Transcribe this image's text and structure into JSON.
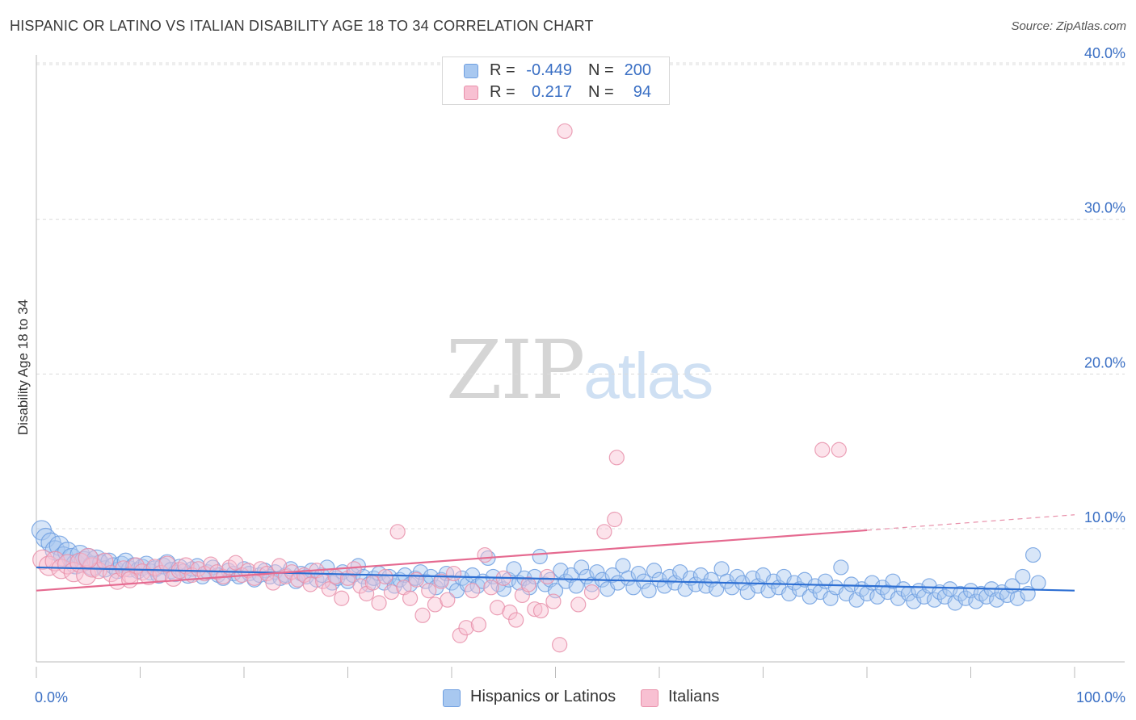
{
  "title": "HISPANIC OR LATINO VS ITALIAN DISABILITY AGE 18 TO 34 CORRELATION CHART",
  "source": "Source: ZipAtlas.com",
  "watermark": {
    "zip": "ZIP",
    "atlas": "atlas"
  },
  "legend": {
    "rows": [
      {
        "r_label": "R =",
        "r_value": "-0.449",
        "n_label": "N =",
        "n_value": "200",
        "color": "#a8c8f0",
        "border": "#6f9fe0"
      },
      {
        "r_label": "R =",
        "r_value": "0.217",
        "n_label": "N =",
        "n_value": "94",
        "color": "#f8c0d2",
        "border": "#e890aa"
      }
    ]
  },
  "bottom_legend": [
    {
      "label": "Hispanics or Latinos",
      "color": "#a8c8f0",
      "border": "#6f9fe0"
    },
    {
      "label": "Italians",
      "color": "#f8c0d2",
      "border": "#e890aa"
    }
  ],
  "chart_data": {
    "type": "scatter",
    "title": "HISPANIC OR LATINO VS ITALIAN DISABILITY AGE 18 TO 34 CORRELATION CHART",
    "xlabel": "",
    "ylabel": "Disability Age 18 to 34",
    "xlim": [
      0,
      100
    ],
    "ylim": [
      0,
      41
    ],
    "x_tick_labels": [
      "0.0%",
      "100.0%"
    ],
    "y_ticks": [
      10,
      20,
      30,
      40
    ],
    "y_tick_labels": [
      "10.0%",
      "20.0%",
      "30.0%",
      "40.0%"
    ],
    "grid": "horizontal dashed",
    "series": [
      {
        "name": "Hispanics or Latinos",
        "color": "#6f9fe0",
        "fill": "#a8c8f0",
        "trend": {
          "x": [
            0,
            100
          ],
          "y": [
            7.5,
            6.0
          ]
        },
        "points": [
          [
            0.5,
            9.9
          ],
          [
            0.9,
            9.4
          ],
          [
            1.4,
            9.1
          ],
          [
            1.8,
            8.6
          ],
          [
            2.2,
            8.9
          ],
          [
            2.6,
            8.2
          ],
          [
            3.0,
            8.5
          ],
          [
            3.4,
            8.1
          ],
          [
            3.8,
            7.7
          ],
          [
            4.2,
            8.3
          ],
          [
            4.6,
            7.9
          ],
          [
            5.0,
            8.1
          ],
          [
            5.4,
            7.6
          ],
          [
            5.8,
            8.0
          ],
          [
            6.2,
            7.8
          ],
          [
            6.6,
            7.4
          ],
          [
            7.0,
            7.9
          ],
          [
            7.4,
            7.6
          ],
          [
            7.8,
            7.3
          ],
          [
            8.2,
            7.7
          ],
          [
            8.6,
            7.9
          ],
          [
            9.0,
            7.4
          ],
          [
            9.4,
            7.6
          ],
          [
            9.8,
            7.3
          ],
          [
            10.2,
            7.5
          ],
          [
            10.6,
            7.7
          ],
          [
            11.0,
            7.2
          ],
          [
            11.4,
            7.4
          ],
          [
            11.8,
            7.0
          ],
          [
            12.2,
            7.6
          ],
          [
            12.6,
            7.8
          ],
          [
            13.0,
            7.3
          ],
          [
            13.4,
            7.1
          ],
          [
            13.8,
            7.5
          ],
          [
            14.2,
            7.2
          ],
          [
            14.6,
            7.0
          ],
          [
            15.0,
            7.4
          ],
          [
            15.5,
            7.6
          ],
          [
            16.0,
            6.9
          ],
          [
            16.5,
            7.2
          ],
          [
            17.0,
            7.5
          ],
          [
            17.5,
            7.0
          ],
          [
            18.0,
            6.8
          ],
          [
            18.5,
            7.3
          ],
          [
            19.0,
            7.1
          ],
          [
            19.5,
            6.9
          ],
          [
            20.0,
            7.4
          ],
          [
            20.5,
            7.1
          ],
          [
            21.0,
            6.7
          ],
          [
            21.5,
            7.0
          ],
          [
            22.0,
            7.3
          ],
          [
            22.5,
            6.9
          ],
          [
            23.0,
            7.2
          ],
          [
            23.5,
            6.8
          ],
          [
            24.0,
            7.0
          ],
          [
            24.5,
            7.4
          ],
          [
            25.0,
            6.6
          ],
          [
            25.5,
            7.1
          ],
          [
            26.0,
            6.9
          ],
          [
            26.5,
            7.3
          ],
          [
            27.0,
            6.7
          ],
          [
            27.5,
            7.0
          ],
          [
            28.0,
            7.5
          ],
          [
            28.5,
            6.5
          ],
          [
            29.0,
            6.8
          ],
          [
            29.5,
            7.2
          ],
          [
            30.0,
            6.6
          ],
          [
            30.5,
            7.0
          ],
          [
            31.0,
            7.6
          ],
          [
            31.5,
            6.9
          ],
          [
            32.0,
            6.4
          ],
          [
            32.5,
            6.8
          ],
          [
            33.0,
            7.1
          ],
          [
            33.5,
            6.5
          ],
          [
            34.0,
            6.9
          ],
          [
            34.5,
            6.3
          ],
          [
            35.0,
            6.7
          ],
          [
            35.5,
            7.0
          ],
          [
            36.0,
            6.4
          ],
          [
            36.5,
            6.8
          ],
          [
            37.0,
            7.2
          ],
          [
            37.5,
            6.6
          ],
          [
            38.0,
            6.9
          ],
          [
            38.5,
            6.2
          ],
          [
            39.0,
            6.7
          ],
          [
            39.5,
            7.1
          ],
          [
            40.0,
            6.5
          ],
          [
            40.5,
            6.0
          ],
          [
            41.0,
            6.8
          ],
          [
            41.5,
            6.4
          ],
          [
            42.0,
            7.0
          ],
          [
            42.5,
            6.3
          ],
          [
            43.0,
            6.6
          ],
          [
            43.5,
            8.1
          ],
          [
            44.0,
            6.9
          ],
          [
            44.5,
            6.4
          ],
          [
            45.0,
            6.1
          ],
          [
            45.5,
            6.7
          ],
          [
            46.0,
            7.4
          ],
          [
            46.5,
            6.5
          ],
          [
            47.0,
            6.8
          ],
          [
            47.5,
            6.2
          ],
          [
            48.0,
            6.9
          ],
          [
            48.5,
            8.2
          ],
          [
            49.0,
            6.4
          ],
          [
            49.5,
            6.7
          ],
          [
            50.0,
            6.0
          ],
          [
            50.5,
            7.3
          ],
          [
            51.0,
            6.6
          ],
          [
            51.5,
            7.0
          ],
          [
            52.0,
            6.3
          ],
          [
            52.5,
            7.5
          ],
          [
            53.0,
            6.9
          ],
          [
            53.5,
            6.4
          ],
          [
            54.0,
            7.2
          ],
          [
            54.5,
            6.7
          ],
          [
            55.0,
            6.1
          ],
          [
            55.5,
            7.0
          ],
          [
            56.0,
            6.5
          ],
          [
            56.5,
            7.6
          ],
          [
            57.0,
            6.8
          ],
          [
            57.5,
            6.2
          ],
          [
            58.0,
            7.1
          ],
          [
            58.5,
            6.6
          ],
          [
            59.0,
            6.0
          ],
          [
            59.5,
            7.3
          ],
          [
            60.0,
            6.7
          ],
          [
            60.5,
            6.3
          ],
          [
            61.0,
            6.9
          ],
          [
            61.5,
            6.5
          ],
          [
            62.0,
            7.2
          ],
          [
            62.5,
            6.1
          ],
          [
            63.0,
            6.8
          ],
          [
            63.5,
            6.4
          ],
          [
            64.0,
            7.0
          ],
          [
            64.5,
            6.3
          ],
          [
            65.0,
            6.7
          ],
          [
            65.5,
            6.1
          ],
          [
            66.0,
            7.4
          ],
          [
            66.5,
            6.6
          ],
          [
            67.0,
            6.2
          ],
          [
            67.5,
            6.9
          ],
          [
            68.0,
            6.5
          ],
          [
            68.5,
            5.9
          ],
          [
            69.0,
            6.8
          ],
          [
            69.5,
            6.3
          ],
          [
            70.0,
            7.0
          ],
          [
            70.5,
            6.0
          ],
          [
            71.0,
            6.6
          ],
          [
            71.5,
            6.2
          ],
          [
            72.0,
            6.9
          ],
          [
            72.5,
            5.8
          ],
          [
            73.0,
            6.5
          ],
          [
            73.5,
            6.1
          ],
          [
            74.0,
            6.7
          ],
          [
            74.5,
            5.6
          ],
          [
            75.0,
            6.3
          ],
          [
            75.5,
            5.9
          ],
          [
            76.0,
            6.6
          ],
          [
            76.5,
            5.5
          ],
          [
            77.0,
            6.2
          ],
          [
            77.5,
            7.5
          ],
          [
            78.0,
            5.8
          ],
          [
            78.5,
            6.4
          ],
          [
            79.0,
            5.4
          ],
          [
            79.5,
            6.1
          ],
          [
            80.0,
            5.8
          ],
          [
            80.5,
            6.5
          ],
          [
            81.0,
            5.6
          ],
          [
            81.5,
            6.2
          ],
          [
            82.0,
            5.9
          ],
          [
            82.5,
            6.6
          ],
          [
            83.0,
            5.5
          ],
          [
            83.5,
            6.1
          ],
          [
            84.0,
            5.8
          ],
          [
            84.5,
            5.3
          ],
          [
            85.0,
            6.0
          ],
          [
            85.5,
            5.6
          ],
          [
            86.0,
            6.3
          ],
          [
            86.5,
            5.4
          ],
          [
            87.0,
            5.9
          ],
          [
            87.5,
            5.6
          ],
          [
            88.0,
            6.1
          ],
          [
            88.5,
            5.2
          ],
          [
            89.0,
            5.8
          ],
          [
            89.5,
            5.5
          ],
          [
            90.0,
            6.0
          ],
          [
            90.5,
            5.3
          ],
          [
            91.0,
            5.8
          ],
          [
            91.5,
            5.6
          ],
          [
            92.0,
            6.1
          ],
          [
            92.5,
            5.4
          ],
          [
            93.0,
            5.9
          ],
          [
            93.5,
            5.7
          ],
          [
            94.0,
            6.3
          ],
          [
            94.5,
            5.5
          ],
          [
            95.0,
            6.9
          ],
          [
            95.5,
            5.8
          ],
          [
            96.0,
            8.3
          ],
          [
            96.5,
            6.5
          ]
        ]
      },
      {
        "name": "Italians",
        "color": "#e890aa",
        "fill": "#f8c0d2",
        "trend": {
          "x": [
            0,
            80
          ],
          "y": [
            6.0,
            9.9
          ],
          "dashed_to": [
            100,
            10.9
          ]
        },
        "points": [
          [
            0.6,
            8.0
          ],
          [
            1.2,
            7.6
          ],
          [
            1.8,
            7.9
          ],
          [
            2.4,
            7.4
          ],
          [
            3.0,
            7.7
          ],
          [
            3.6,
            7.2
          ],
          [
            4.2,
            7.8
          ],
          [
            4.8,
            7.0
          ],
          [
            5.4,
            7.5
          ],
          [
            6.0,
            7.3
          ],
          [
            6.6,
            7.9
          ],
          [
            7.2,
            7.1
          ],
          [
            7.8,
            6.6
          ],
          [
            8.4,
            7.4
          ],
          [
            9.0,
            7.0
          ],
          [
            9.6,
            7.6
          ],
          [
            10.2,
            7.2
          ],
          [
            10.8,
            6.9
          ],
          [
            11.4,
            7.5
          ],
          [
            12.0,
            7.1
          ],
          [
            12.6,
            7.7
          ],
          [
            13.2,
            6.8
          ],
          [
            13.8,
            7.3
          ],
          [
            14.4,
            7.6
          ],
          [
            15.0,
            7.0
          ],
          [
            15.6,
            7.4
          ],
          [
            16.2,
            7.1
          ],
          [
            16.8,
            7.7
          ],
          [
            17.4,
            7.2
          ],
          [
            18.0,
            6.9
          ],
          [
            18.6,
            7.5
          ],
          [
            19.2,
            7.8
          ],
          [
            19.8,
            7.0
          ],
          [
            20.4,
            7.3
          ],
          [
            21.0,
            6.8
          ],
          [
            21.6,
            7.4
          ],
          [
            22.2,
            7.1
          ],
          [
            22.8,
            6.5
          ],
          [
            23.4,
            7.6
          ],
          [
            24.0,
            6.9
          ],
          [
            24.6,
            7.2
          ],
          [
            25.2,
            6.7
          ],
          [
            25.8,
            7.0
          ],
          [
            26.4,
            6.4
          ],
          [
            27.0,
            7.3
          ],
          [
            27.6,
            6.6
          ],
          [
            28.2,
            6.1
          ],
          [
            28.8,
            6.9
          ],
          [
            29.4,
            5.5
          ],
          [
            30.0,
            6.8
          ],
          [
            30.6,
            7.4
          ],
          [
            31.2,
            6.3
          ],
          [
            31.8,
            5.8
          ],
          [
            32.4,
            6.5
          ],
          [
            33.0,
            5.2
          ],
          [
            33.6,
            6.9
          ],
          [
            34.2,
            5.9
          ],
          [
            34.8,
            9.8
          ],
          [
            35.4,
            6.2
          ],
          [
            36.0,
            5.5
          ],
          [
            36.6,
            6.7
          ],
          [
            37.2,
            4.4
          ],
          [
            37.8,
            6.0
          ],
          [
            38.4,
            5.1
          ],
          [
            39.0,
            6.6
          ],
          [
            39.6,
            5.4
          ],
          [
            40.2,
            7.1
          ],
          [
            40.8,
            3.1
          ],
          [
            41.4,
            3.6
          ],
          [
            42.0,
            6.0
          ],
          [
            42.6,
            3.8
          ],
          [
            43.2,
            8.3
          ],
          [
            43.8,
            6.2
          ],
          [
            44.4,
            4.9
          ],
          [
            45.0,
            6.8
          ],
          [
            45.6,
            4.6
          ],
          [
            46.2,
            4.1
          ],
          [
            46.8,
            5.7
          ],
          [
            47.4,
            6.4
          ],
          [
            48.0,
            4.8
          ],
          [
            48.6,
            4.7
          ],
          [
            49.2,
            6.9
          ],
          [
            49.8,
            5.3
          ],
          [
            50.4,
            2.5
          ],
          [
            50.9,
            35.7
          ],
          [
            52.2,
            5.1
          ],
          [
            53.5,
            5.9
          ],
          [
            54.7,
            9.8
          ],
          [
            55.7,
            10.6
          ],
          [
            55.9,
            14.6
          ],
          [
            75.7,
            15.1
          ],
          [
            77.3,
            15.1
          ],
          [
            5.0,
            8.1
          ],
          [
            9.0,
            6.7
          ]
        ]
      }
    ]
  }
}
